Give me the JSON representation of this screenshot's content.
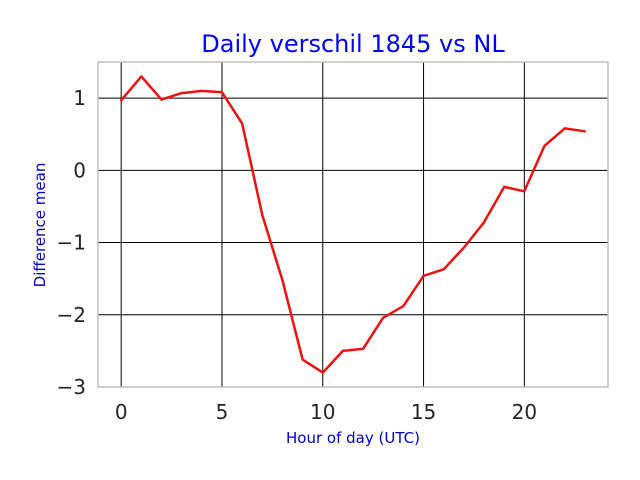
{
  "chart_data": {
    "type": "line",
    "title": "Daily verschil 1845 vs NL",
    "xlabel": "Hour of day (UTC)",
    "ylabel": "Difference mean",
    "xlim": [
      -1.15,
      24.15
    ],
    "ylim": [
      -3.0,
      1.5
    ],
    "x_ticks": [
      0,
      5,
      10,
      15,
      20
    ],
    "x_tick_labels": [
      "0",
      "5",
      "10",
      "15",
      "20"
    ],
    "y_ticks": [
      1,
      0,
      -1,
      -2,
      -3
    ],
    "y_tick_labels": [
      "1",
      "0",
      "−1",
      "−2",
      "−3"
    ],
    "grid": true,
    "legend": "none",
    "series": [
      {
        "color": "#ee1111",
        "x": [
          0,
          1,
          2,
          3,
          4,
          5,
          6,
          7,
          8,
          9,
          10,
          11,
          12,
          13,
          14,
          15,
          16,
          17,
          18,
          19,
          20,
          21,
          22,
          23
        ],
        "y": [
          0.97,
          1.3,
          0.98,
          1.07,
          1.1,
          1.08,
          0.65,
          -0.62,
          -1.52,
          -2.62,
          -2.8,
          -2.5,
          -2.47,
          -2.04,
          -1.88,
          -1.46,
          -1.37,
          -1.07,
          -0.72,
          -0.23,
          -0.29,
          0.34,
          0.58,
          0.54
        ]
      }
    ]
  }
}
